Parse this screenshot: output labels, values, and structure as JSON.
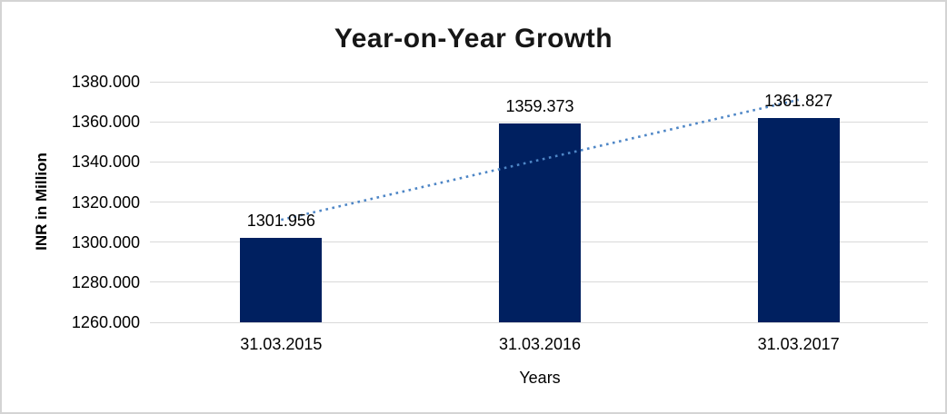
{
  "chart_data": {
    "type": "bar",
    "title": "Year-on-Year Growth",
    "categories": [
      "31.03.2015",
      "31.03.2016",
      "31.03.2017"
    ],
    "values": [
      1301.956,
      1359.373,
      1361.827
    ],
    "data_labels": [
      "1301.956",
      "1359.373",
      "1361.827"
    ],
    "xlabel": "Years",
    "ylabel": "INR in Million",
    "ylim": [
      1260,
      1380
    ],
    "ytick_step": 20,
    "ytick_labels": [
      "1380.000",
      "1360.000",
      "1340.000",
      "1320.000",
      "1300.000",
      "1280.000",
      "1260.000"
    ],
    "grid": true,
    "legend": false,
    "trendline": {
      "type": "linear",
      "style": "dotted",
      "color": "#4E86C6"
    },
    "colors": {
      "bar": "#002060",
      "gridline": "#D9D9D9",
      "text": "#000000",
      "border": "#D4D4D4",
      "background": "#FFFFFF"
    }
  }
}
